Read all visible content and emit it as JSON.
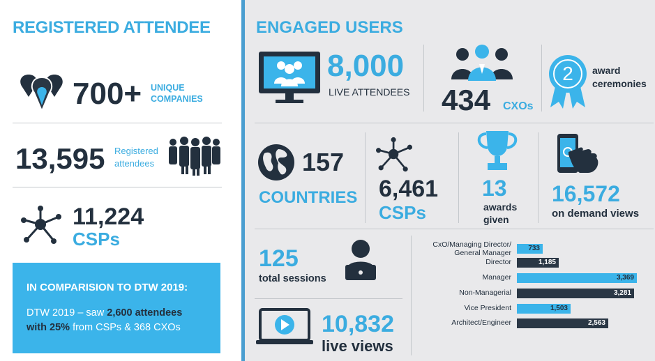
{
  "left": {
    "heading": "REGISTERED ATTENDEE",
    "companies": {
      "value": "700+",
      "label_line1": "UNIQUE",
      "label_line2": "COMPANIES",
      "icon": "location-pins-icon"
    },
    "registered": {
      "value": "13,595",
      "label_line1": "Registered",
      "label_line2": "attendees",
      "icon": "crowd-icon"
    },
    "csps": {
      "value": "11,224",
      "label": "CSPs",
      "icon": "network-icon"
    },
    "comparison": {
      "title": "IN COMPARISION TO DTW 2019:",
      "line1_pre": "DTW 2019 – saw ",
      "line1_highlight": "2,600 attendees",
      "line2_highlight": "with 25%",
      "line2_post": "  from CSPs & 368 CXOs"
    }
  },
  "right": {
    "heading": "ENGAGED USERS",
    "live": {
      "value": "8,000",
      "label": "LIVE ATTENDEES",
      "icon": "monitor-group-icon"
    },
    "cxos": {
      "value": "434",
      "label": "CXOs",
      "icon": "executives-icon"
    },
    "award": {
      "number": "2",
      "label_line1": "award",
      "label_line2": "ceremonies",
      "icon": "award-badge-icon"
    },
    "countries": {
      "value": "157",
      "label": "COUNTRIES",
      "icon": "globe-icon"
    },
    "csps": {
      "value": "6,461",
      "label": "CSPs",
      "icon": "network-icon"
    },
    "awards_given": {
      "value": "13",
      "label_line1": "awards",
      "label_line2": "given",
      "icon": "trophy-icon"
    },
    "on_demand": {
      "value": "16,572",
      "label": "on demand views",
      "icon": "tablet-tap-icon"
    },
    "sessions": {
      "value": "125",
      "label": "total sessions",
      "icon": "laptop-user-icon"
    },
    "live_views": {
      "value": "10,832",
      "label": "live views",
      "icon": "video-play-icon"
    }
  },
  "chart_data": {
    "type": "bar",
    "orientation": "horizontal",
    "categories": [
      "CxO/Managing Director/ General Manager",
      "Director",
      "Manager",
      "Non-Managerial",
      "Vice President",
      "Architect/Engineer"
    ],
    "values": [
      733,
      1185,
      3369,
      3281,
      1503,
      2563
    ],
    "value_labels": [
      "733",
      "1,185",
      "3,369",
      "3,281",
      "1,503",
      "2,563"
    ],
    "colors": [
      "#3bb4ea",
      "#2a3745",
      "#3bb4ea",
      "#2a3745",
      "#3bb4ea",
      "#2a3745"
    ],
    "xlim": [
      0,
      3369
    ]
  }
}
